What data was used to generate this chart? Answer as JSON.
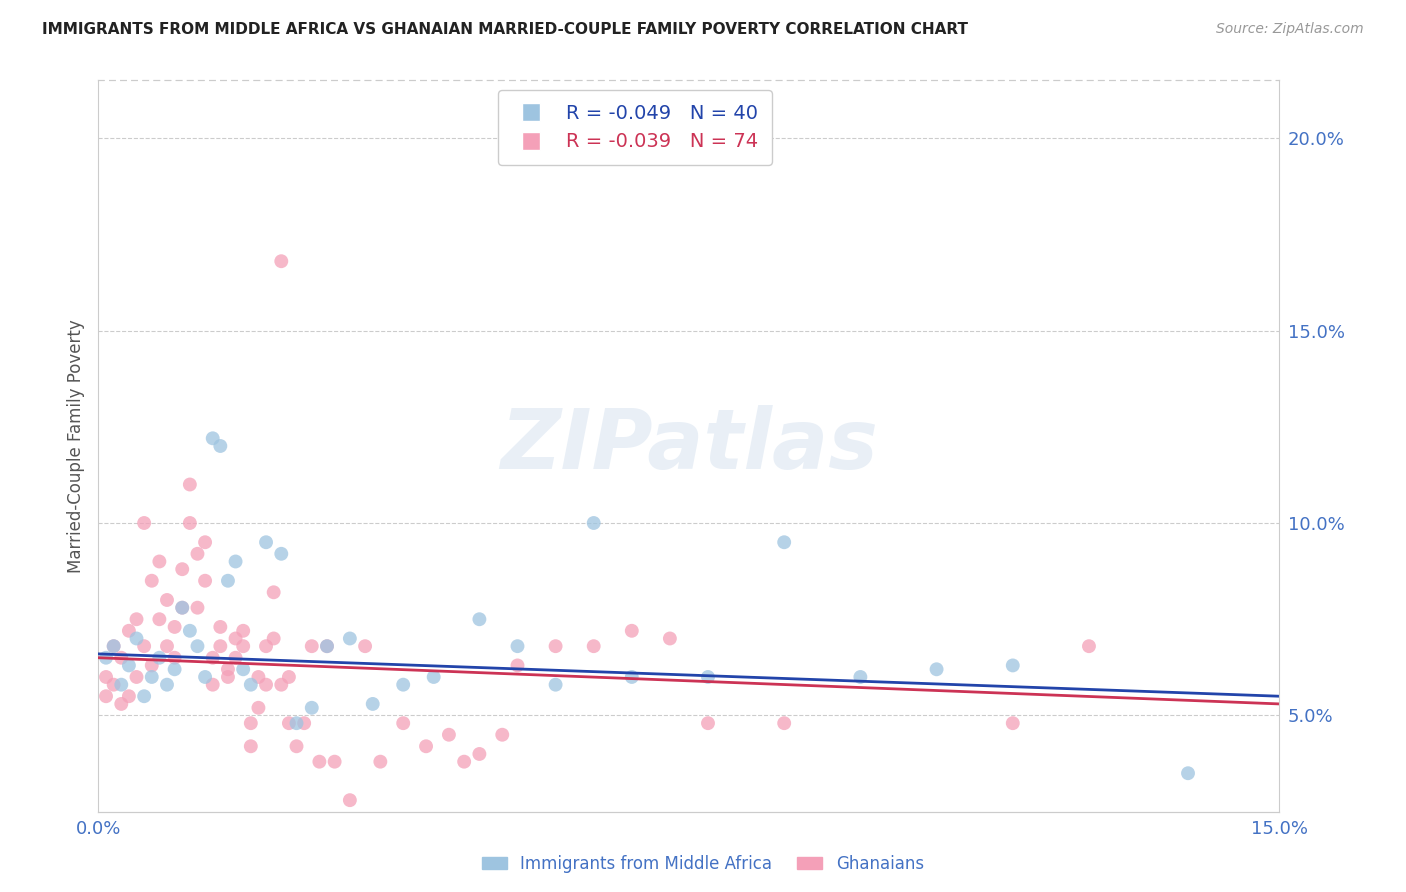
{
  "title": "IMMIGRANTS FROM MIDDLE AFRICA VS GHANAIAN MARRIED-COUPLE FAMILY POVERTY CORRELATION CHART",
  "source": "Source: ZipAtlas.com",
  "ylabel": "Married-Couple Family Poverty",
  "xlim": [
    0.0,
    0.155
  ],
  "ylim": [
    0.025,
    0.215
  ],
  "right_yticks": [
    0.05,
    0.1,
    0.15,
    0.2
  ],
  "right_yticklabels": [
    "5.0%",
    "10.0%",
    "15.0%",
    "20.0%"
  ],
  "blue_color": "#9ec4e0",
  "pink_color": "#f4a0b8",
  "blue_line_color": "#2244aa",
  "pink_line_color": "#cc3355",
  "blue_R": -0.049,
  "blue_N": 40,
  "pink_R": -0.039,
  "pink_N": 74,
  "blue_x": [
    0.001,
    0.002,
    0.003,
    0.004,
    0.005,
    0.006,
    0.007,
    0.008,
    0.009,
    0.01,
    0.011,
    0.012,
    0.013,
    0.014,
    0.015,
    0.016,
    0.017,
    0.018,
    0.019,
    0.02,
    0.022,
    0.024,
    0.026,
    0.028,
    0.03,
    0.033,
    0.036,
    0.04,
    0.044,
    0.05,
    0.055,
    0.06,
    0.065,
    0.07,
    0.08,
    0.09,
    0.1,
    0.11,
    0.12,
    0.143
  ],
  "blue_y": [
    0.065,
    0.068,
    0.058,
    0.063,
    0.07,
    0.055,
    0.06,
    0.065,
    0.058,
    0.062,
    0.078,
    0.072,
    0.068,
    0.06,
    0.122,
    0.12,
    0.085,
    0.09,
    0.062,
    0.058,
    0.095,
    0.092,
    0.048,
    0.052,
    0.068,
    0.07,
    0.053,
    0.058,
    0.06,
    0.075,
    0.068,
    0.058,
    0.1,
    0.06,
    0.06,
    0.095,
    0.06,
    0.062,
    0.063,
    0.035
  ],
  "pink_x": [
    0.001,
    0.001,
    0.002,
    0.002,
    0.003,
    0.003,
    0.004,
    0.004,
    0.005,
    0.005,
    0.006,
    0.006,
    0.007,
    0.007,
    0.008,
    0.008,
    0.009,
    0.009,
    0.01,
    0.01,
    0.011,
    0.011,
    0.012,
    0.012,
    0.013,
    0.013,
    0.014,
    0.014,
    0.015,
    0.015,
    0.016,
    0.016,
    0.017,
    0.017,
    0.018,
    0.018,
    0.019,
    0.019,
    0.02,
    0.02,
    0.021,
    0.021,
    0.022,
    0.022,
    0.023,
    0.023,
    0.024,
    0.024,
    0.025,
    0.025,
    0.026,
    0.027,
    0.028,
    0.029,
    0.03,
    0.031,
    0.033,
    0.035,
    0.037,
    0.04,
    0.043,
    0.046,
    0.048,
    0.05,
    0.053,
    0.055,
    0.06,
    0.065,
    0.07,
    0.075,
    0.08,
    0.09,
    0.12,
    0.13
  ],
  "pink_y": [
    0.06,
    0.055,
    0.058,
    0.068,
    0.053,
    0.065,
    0.055,
    0.072,
    0.06,
    0.075,
    0.068,
    0.1,
    0.063,
    0.085,
    0.075,
    0.09,
    0.068,
    0.08,
    0.073,
    0.065,
    0.078,
    0.088,
    0.1,
    0.11,
    0.092,
    0.078,
    0.095,
    0.085,
    0.065,
    0.058,
    0.068,
    0.073,
    0.062,
    0.06,
    0.07,
    0.065,
    0.072,
    0.068,
    0.042,
    0.048,
    0.06,
    0.052,
    0.068,
    0.058,
    0.07,
    0.082,
    0.168,
    0.058,
    0.048,
    0.06,
    0.042,
    0.048,
    0.068,
    0.038,
    0.068,
    0.038,
    0.028,
    0.068,
    0.038,
    0.048,
    0.042,
    0.045,
    0.038,
    0.04,
    0.045,
    0.063,
    0.068,
    0.068,
    0.072,
    0.07,
    0.048,
    0.048,
    0.048,
    0.068
  ]
}
